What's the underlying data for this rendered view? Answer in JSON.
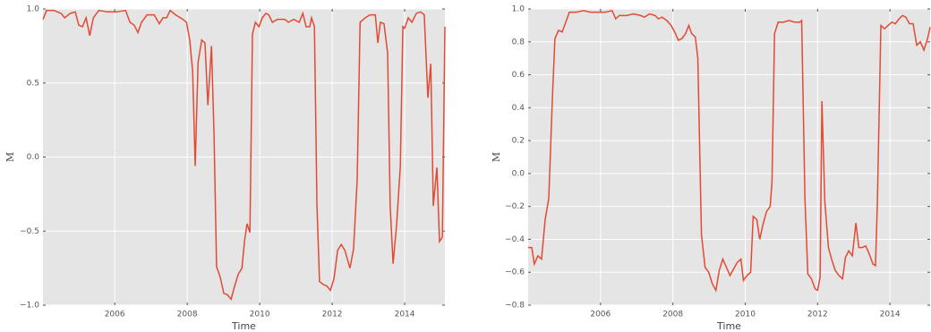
{
  "chart_data": [
    {
      "type": "line",
      "xlabel": "Time",
      "ylabel": "M",
      "color": "#e24a33",
      "xlim": [
        2004.02,
        2015.11
      ],
      "xticks": [
        2006,
        2008,
        2010,
        2012,
        2014
      ],
      "ylim": [
        -1.0,
        1.0
      ],
      "yticks": [
        {
          "value": -1.0,
          "label": "−1.0"
        },
        {
          "value": -0.5,
          "label": "−0.5"
        },
        {
          "value": 0.0,
          "label": "0.0"
        },
        {
          "value": 0.5,
          "label": "0.5"
        },
        {
          "value": 1.0,
          "label": "1.0"
        }
      ],
      "grid": true,
      "x": [
        2004.02,
        2004.12,
        2004.32,
        2004.52,
        2004.62,
        2004.77,
        2004.91,
        2005.01,
        2005.11,
        2005.21,
        2005.31,
        2005.41,
        2005.56,
        2005.8,
        2006.05,
        2006.3,
        2006.42,
        2006.54,
        2006.64,
        2006.74,
        2006.89,
        2007.09,
        2007.23,
        2007.33,
        2007.43,
        2007.53,
        2007.68,
        2007.88,
        2007.98,
        2008.07,
        2008.15,
        2008.22,
        2008.3,
        2008.4,
        2008.49,
        2008.57,
        2008.67,
        2008.74,
        2008.81,
        2008.91,
        2009.01,
        2009.11,
        2009.21,
        2009.31,
        2009.41,
        2009.51,
        2009.58,
        2009.65,
        2009.73,
        2009.8,
        2009.88,
        2009.98,
        2010.07,
        2010.17,
        2010.25,
        2010.35,
        2010.49,
        2010.69,
        2010.79,
        2010.94,
        2011.09,
        2011.19,
        2011.28,
        2011.38,
        2011.43,
        2011.51,
        2011.58,
        2011.65,
        2011.75,
        2011.85,
        2011.95,
        2012.05,
        2012.15,
        2012.25,
        2012.35,
        2012.49,
        2012.59,
        2012.69,
        2012.77,
        2012.91,
        2013.04,
        2013.19,
        2013.26,
        2013.33,
        2013.43,
        2013.53,
        2013.6,
        2013.68,
        2013.78,
        2013.88,
        2013.95,
        2014.0,
        2014.1,
        2014.2,
        2014.32,
        2014.44,
        2014.54,
        2014.64,
        2014.72,
        2014.79,
        2014.89,
        2014.96,
        2015.04,
        2015.11
      ],
      "values": [
        0.93,
        0.99,
        0.99,
        0.97,
        0.94,
        0.97,
        0.98,
        0.89,
        0.88,
        0.94,
        0.82,
        0.94,
        0.99,
        0.98,
        0.98,
        0.99,
        0.91,
        0.89,
        0.84,
        0.91,
        0.96,
        0.96,
        0.9,
        0.94,
        0.94,
        0.99,
        0.96,
        0.93,
        0.91,
        0.79,
        0.58,
        -0.06,
        0.64,
        0.79,
        0.77,
        0.35,
        0.75,
        0.15,
        -0.74,
        -0.81,
        -0.92,
        -0.93,
        -0.96,
        -0.87,
        -0.79,
        -0.75,
        -0.57,
        -0.45,
        -0.51,
        0.83,
        0.91,
        0.88,
        0.94,
        0.97,
        0.96,
        0.91,
        0.93,
        0.93,
        0.91,
        0.93,
        0.91,
        0.97,
        0.88,
        0.88,
        0.94,
        0.88,
        -0.33,
        -0.84,
        -0.86,
        -0.87,
        -0.9,
        -0.82,
        -0.63,
        -0.59,
        -0.63,
        -0.75,
        -0.62,
        -0.15,
        0.91,
        0.94,
        0.96,
        0.96,
        0.77,
        0.91,
        0.9,
        0.7,
        -0.33,
        -0.72,
        -0.45,
        -0.06,
        0.88,
        0.87,
        0.94,
        0.91,
        0.97,
        0.98,
        0.96,
        0.4,
        0.63,
        -0.33,
        -0.07,
        -0.57,
        -0.54,
        0.88
      ]
    },
    {
      "type": "line",
      "xlabel": "Time",
      "ylabel": "M",
      "color": "#e24a33",
      "xlim": [
        2004.0,
        2015.11
      ],
      "xticks": [
        2006,
        2008,
        2010,
        2012,
        2014
      ],
      "ylim": [
        -0.8,
        1.0
      ],
      "yticks": [
        {
          "value": -0.8,
          "label": "−0.8"
        },
        {
          "value": -0.6,
          "label": "−0.6"
        },
        {
          "value": -0.4,
          "label": "−0.4"
        },
        {
          "value": -0.2,
          "label": "−0.2"
        },
        {
          "value": 0.0,
          "label": "0.0"
        },
        {
          "value": 0.2,
          "label": "0.2"
        },
        {
          "value": 0.4,
          "label": "0.4"
        },
        {
          "value": 0.6,
          "label": "0.6"
        },
        {
          "value": 0.8,
          "label": "0.8"
        },
        {
          "value": 1.0,
          "label": "1.0"
        }
      ],
      "grid": true,
      "x": [
        2004.0,
        2004.1,
        2004.17,
        2004.27,
        2004.37,
        2004.47,
        2004.57,
        2004.67,
        2004.74,
        2004.84,
        2004.94,
        2005.04,
        2005.14,
        2005.33,
        2005.53,
        2005.73,
        2005.93,
        2006.12,
        2006.32,
        2006.42,
        2006.52,
        2006.72,
        2006.91,
        2007.11,
        2007.21,
        2007.36,
        2007.51,
        2007.6,
        2007.7,
        2007.83,
        2007.95,
        2008.05,
        2008.15,
        2008.25,
        2008.35,
        2008.44,
        2008.52,
        2008.62,
        2008.69,
        2008.79,
        2008.89,
        2008.99,
        2009.09,
        2009.19,
        2009.28,
        2009.38,
        2009.48,
        2009.58,
        2009.68,
        2009.78,
        2009.88,
        2009.95,
        2010.05,
        2010.15,
        2010.22,
        2010.32,
        2010.4,
        2010.49,
        2010.59,
        2010.69,
        2010.74,
        2010.81,
        2010.91,
        2011.06,
        2011.21,
        2011.36,
        2011.51,
        2011.56,
        2011.65,
        2011.73,
        2011.83,
        2011.93,
        2012.0,
        2012.07,
        2012.12,
        2012.2,
        2012.3,
        2012.4,
        2012.49,
        2012.59,
        2012.69,
        2012.77,
        2012.86,
        2012.96,
        2013.06,
        2013.14,
        2013.23,
        2013.33,
        2013.43,
        2013.53,
        2013.6,
        2013.65,
        2013.75,
        2013.85,
        2013.95,
        2014.05,
        2014.15,
        2014.25,
        2014.35,
        2014.44,
        2014.54,
        2014.64,
        2014.74,
        2014.84,
        2014.94,
        2015.04,
        2015.11
      ],
      "values": [
        -0.45,
        -0.45,
        -0.55,
        -0.5,
        -0.52,
        -0.28,
        -0.15,
        0.46,
        0.82,
        0.87,
        0.86,
        0.92,
        0.98,
        0.98,
        0.99,
        0.98,
        0.98,
        0.98,
        0.99,
        0.94,
        0.96,
        0.96,
        0.97,
        0.96,
        0.95,
        0.97,
        0.96,
        0.94,
        0.95,
        0.93,
        0.9,
        0.86,
        0.81,
        0.82,
        0.85,
        0.9,
        0.85,
        0.83,
        0.7,
        -0.37,
        -0.57,
        -0.6,
        -0.67,
        -0.71,
        -0.59,
        -0.52,
        -0.57,
        -0.62,
        -0.58,
        -0.54,
        -0.52,
        -0.65,
        -0.62,
        -0.6,
        -0.26,
        -0.28,
        -0.4,
        -0.31,
        -0.23,
        -0.2,
        -0.05,
        0.85,
        0.92,
        0.92,
        0.93,
        0.92,
        0.92,
        0.93,
        -0.15,
        -0.61,
        -0.64,
        -0.7,
        -0.71,
        -0.63,
        0.44,
        -0.17,
        -0.45,
        -0.53,
        -0.59,
        -0.62,
        -0.64,
        -0.51,
        -0.47,
        -0.5,
        -0.3,
        -0.45,
        -0.45,
        -0.44,
        -0.49,
        -0.55,
        -0.56,
        -0.2,
        0.9,
        0.88,
        0.9,
        0.92,
        0.91,
        0.94,
        0.96,
        0.95,
        0.91,
        0.91,
        0.78,
        0.8,
        0.75,
        0.82,
        0.89
      ]
    }
  ]
}
